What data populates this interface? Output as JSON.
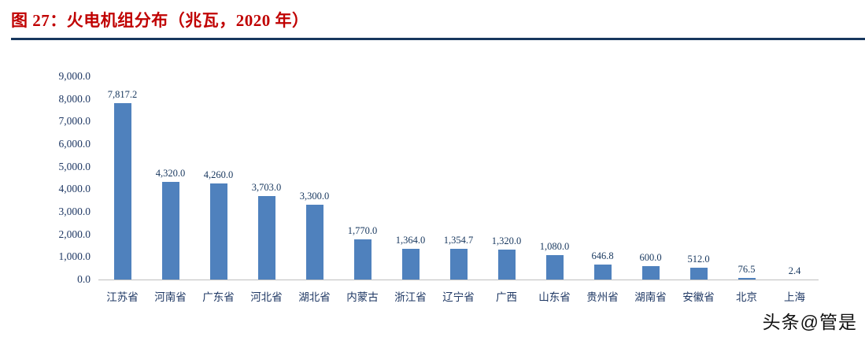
{
  "title": "图 27：火电机组分布（兆瓦，2020 年）",
  "watermark": "头条@管是",
  "colors": {
    "title": "#c00000",
    "rule": "#17375e",
    "bar": "#4f81bd",
    "axis_text": "#1f3864",
    "label_text": "#17375e",
    "axis_line": "#bfbfbf"
  },
  "chart_data": {
    "type": "bar",
    "title": "图 27：火电机组分布（兆瓦，2020 年）",
    "categories": [
      "江苏省",
      "河南省",
      "广东省",
      "河北省",
      "湖北省",
      "内蒙古",
      "浙江省",
      "辽宁省",
      "广西",
      "山东省",
      "贵州省",
      "湖南省",
      "安徽省",
      "北京",
      "上海"
    ],
    "values": [
      7817.2,
      4320.0,
      4260.0,
      3703.0,
      3300.0,
      1770.0,
      1364.0,
      1354.7,
      1320.0,
      1080.0,
      646.8,
      600.0,
      512.0,
      76.5,
      2.4
    ],
    "value_labels": [
      "7,817.2",
      "4,320.0",
      "4,260.0",
      "3,703.0",
      "3,300.0",
      "1,770.0",
      "1,364.0",
      "1,354.7",
      "1,320.0",
      "1,080.0",
      "646.8",
      "600.0",
      "512.0",
      "76.5",
      "2.4"
    ],
    "xlabel": "",
    "ylabel": "",
    "ylim": [
      0,
      9000
    ],
    "ytick_labels": [
      "0.0",
      "1,000.0",
      "2,000.0",
      "3,000.0",
      "4,000.0",
      "5,000.0",
      "6,000.0",
      "7,000.0",
      "8,000.0",
      "9,000.0"
    ],
    "grid": false,
    "legend": null
  }
}
